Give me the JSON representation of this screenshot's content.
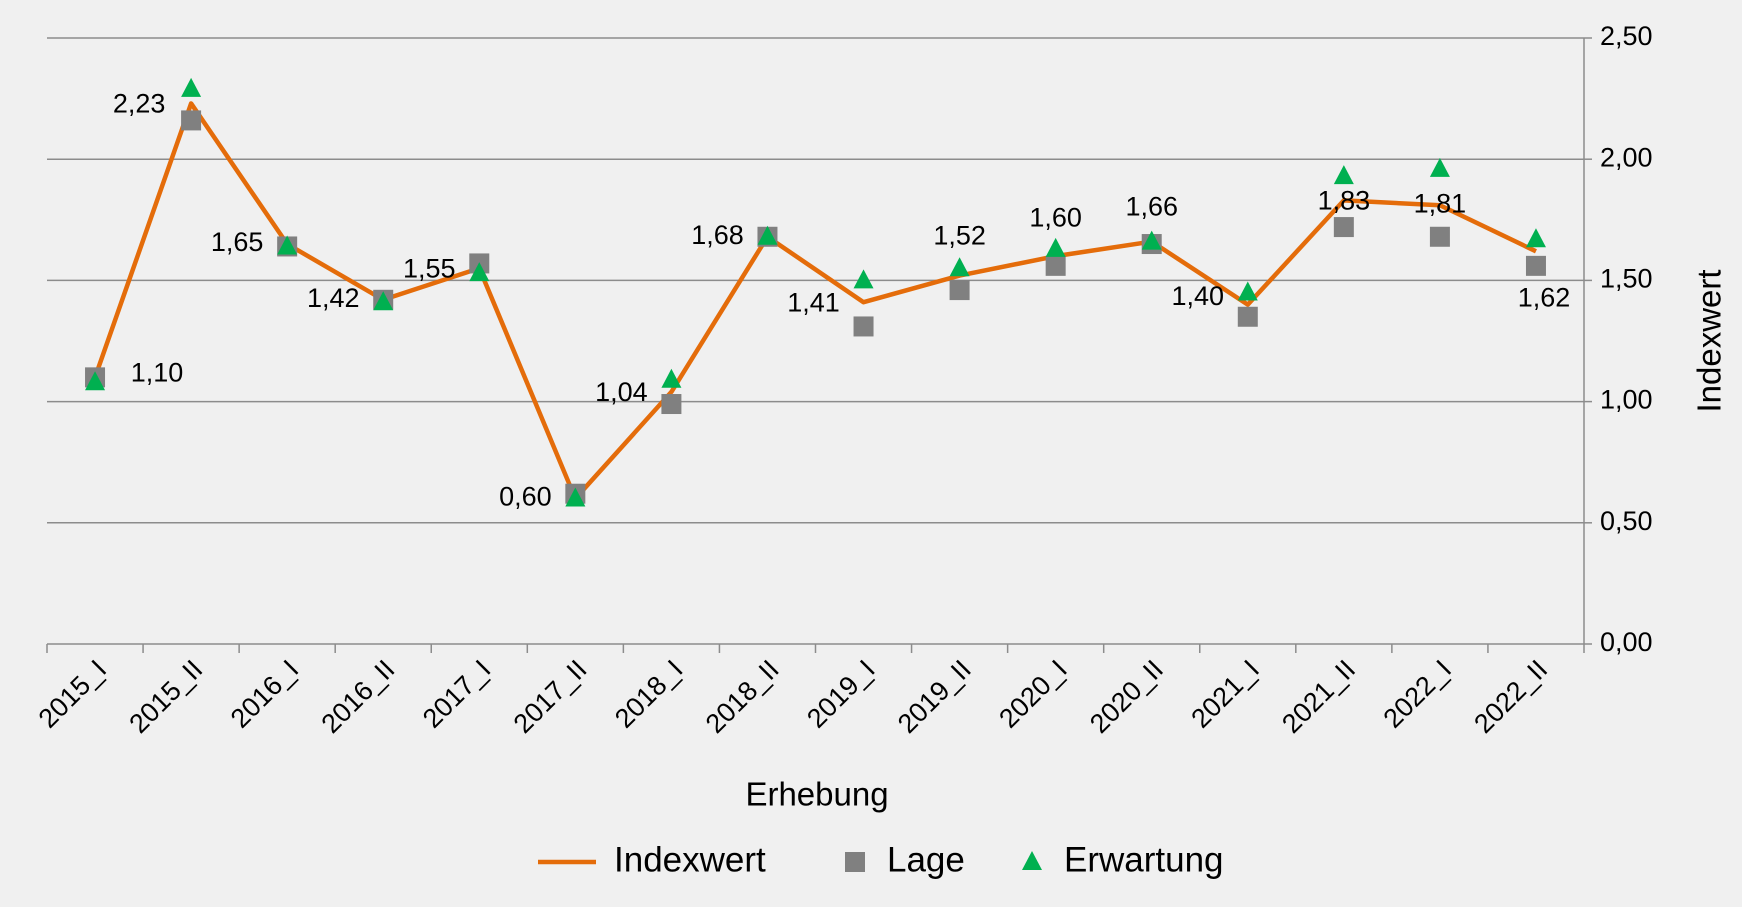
{
  "chart_data": {
    "type": "line",
    "categories": [
      "2015_I",
      "2015_II",
      "2016_I",
      "2016_II",
      "2017_I",
      "2017_II",
      "2018_I",
      "2018_II",
      "2019_I",
      "2019_II",
      "2020_I",
      "2020_II",
      "2021_I",
      "2021_II",
      "2022_I",
      "2022_II"
    ],
    "series": [
      {
        "name": "Indexwert",
        "color": "#e46c0a",
        "mark": "line",
        "values": [
          1.1,
          2.23,
          1.65,
          1.42,
          1.55,
          0.6,
          1.04,
          1.68,
          1.41,
          1.52,
          1.6,
          1.66,
          1.4,
          1.83,
          1.81,
          1.62
        ],
        "value_labels": [
          "1,10",
          "2,23",
          "1,65",
          "1,42",
          "1,55",
          "0,60",
          "1,04",
          "1,68",
          "1,41",
          "1,52",
          "1,60",
          "1,66",
          "1,40",
          "1,83",
          "1,81",
          "1,62"
        ]
      },
      {
        "name": "Lage",
        "color": "#808080",
        "mark": "square",
        "values": [
          1.1,
          2.16,
          1.64,
          1.42,
          1.57,
          0.62,
          0.99,
          1.68,
          1.31,
          1.46,
          1.56,
          1.65,
          1.35,
          1.72,
          1.68,
          1.56
        ]
      },
      {
        "name": "Erwartung",
        "color": "#00b050",
        "mark": "triangle",
        "values": [
          1.08,
          2.29,
          1.64,
          1.41,
          1.53,
          0.6,
          1.09,
          1.68,
          1.5,
          1.55,
          1.63,
          1.66,
          1.45,
          1.93,
          1.96,
          1.67
        ]
      }
    ],
    "xlabel": "Erhebung",
    "ylabel": "Indexwert",
    "ylim": [
      0,
      2.5
    ],
    "yticks": [
      {
        "value": 0,
        "label": "0,00"
      },
      {
        "value": 0.5,
        "label": "0,50"
      },
      {
        "value": 1,
        "label": "1,00"
      },
      {
        "value": 1.5,
        "label": "1,50"
      },
      {
        "value": 2,
        "label": "2,00"
      },
      {
        "value": 2.5,
        "label": "2,50"
      }
    ],
    "y_axis_side": "right",
    "grid": true,
    "legend": "bottom"
  }
}
